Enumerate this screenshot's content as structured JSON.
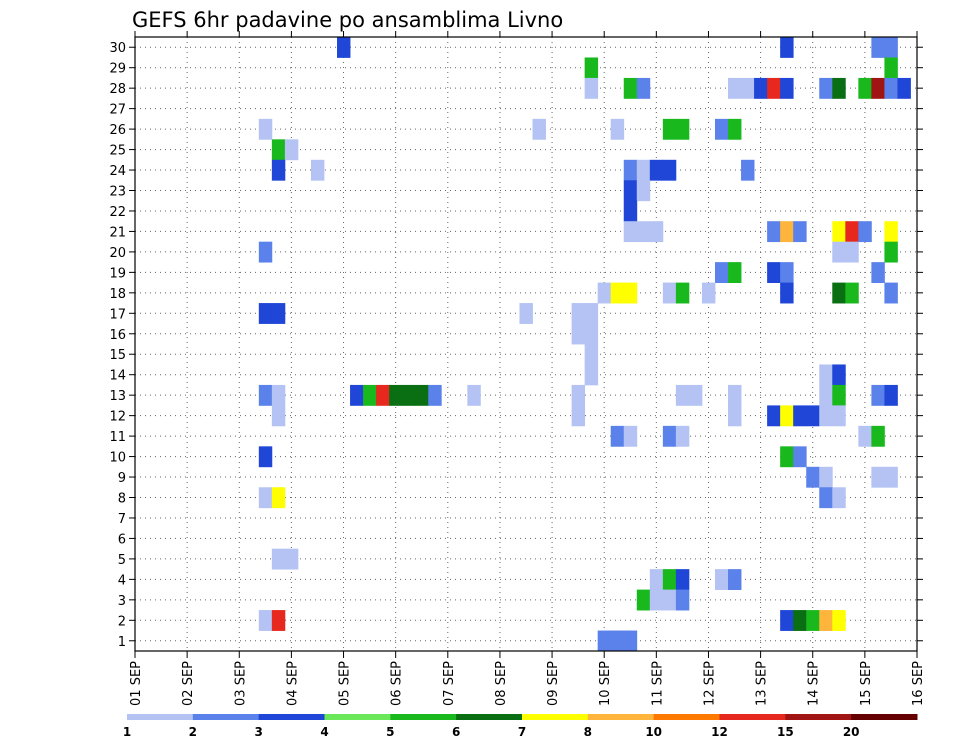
{
  "chart_data": {
    "type": "heatmap",
    "title": "GEFS 6hr padavine po ansamblima Livno",
    "xlabel": "",
    "ylabel": "",
    "x_tick_labels": [
      "01 SEP",
      "02 SEP",
      "03 SEP",
      "04 SEP",
      "05 SEP",
      "06 SEP",
      "07 SEP",
      "08 SEP",
      "09 SEP",
      "10 SEP",
      "11 SEP",
      "12 SEP",
      "13 SEP",
      "14 SEP",
      "15 SEP",
      "16 SEP"
    ],
    "y_tick_labels": [
      "1",
      "2",
      "3",
      "4",
      "5",
      "6",
      "7",
      "8",
      "9",
      "10",
      "11",
      "12",
      "13",
      "14",
      "15",
      "16",
      "17",
      "18",
      "19",
      "20",
      "21",
      "22",
      "23",
      "24",
      "25",
      "26",
      "27",
      "28",
      "29",
      "30"
    ],
    "xlim": [
      0,
      60
    ],
    "ylim": [
      0.5,
      30.5
    ],
    "grid": true,
    "x_unit": "6-hour steps from 01 SEP 00",
    "y_unit": "ensemble member",
    "colorbar": {
      "labels": [
        "1",
        "2",
        "3",
        "4",
        "5",
        "6",
        "7",
        "8",
        "10",
        "12",
        "15",
        "20"
      ],
      "colors": [
        "#b4c3f3",
        "#5a82ea",
        "#1f46d6",
        "#6ae85a",
        "#19b91e",
        "#0a6e12",
        "#ffff00",
        "#ffb43c",
        "#ff7800",
        "#e6281e",
        "#a01414",
        "#640000"
      ]
    },
    "cells": [
      [
        16,
        30,
        3
      ],
      [
        50,
        30,
        3
      ],
      [
        57,
        30,
        2
      ],
      [
        58,
        30,
        2
      ],
      [
        35,
        29,
        5
      ],
      [
        58,
        29,
        5
      ],
      [
        35,
        28,
        1
      ],
      [
        38,
        28,
        5
      ],
      [
        39,
        28,
        2
      ],
      [
        46,
        28,
        1
      ],
      [
        47,
        28,
        1
      ],
      [
        48,
        28,
        3
      ],
      [
        49,
        28,
        10
      ],
      [
        50,
        28,
        3
      ],
      [
        53,
        28,
        2
      ],
      [
        54,
        28,
        6
      ],
      [
        56,
        28,
        5
      ],
      [
        57,
        28,
        11
      ],
      [
        58,
        28,
        2
      ],
      [
        59,
        28,
        3
      ],
      [
        10,
        26,
        1
      ],
      [
        31,
        26,
        1
      ],
      [
        37,
        26,
        1
      ],
      [
        41,
        26,
        5
      ],
      [
        42,
        26,
        5
      ],
      [
        45,
        26,
        2
      ],
      [
        46,
        26,
        5
      ],
      [
        11,
        25,
        5
      ],
      [
        12,
        25,
        1
      ],
      [
        11,
        24,
        3
      ],
      [
        14,
        24,
        1
      ],
      [
        38,
        24,
        2
      ],
      [
        39,
        24,
        1
      ],
      [
        40,
        24,
        3
      ],
      [
        41,
        24,
        3
      ],
      [
        47,
        24,
        2
      ],
      [
        38,
        23,
        3
      ],
      [
        39,
        23,
        1
      ],
      [
        38,
        22,
        3
      ],
      [
        38,
        21,
        1
      ],
      [
        39,
        21,
        1
      ],
      [
        40,
        21,
        1
      ],
      [
        49,
        21,
        2
      ],
      [
        50,
        21,
        8
      ],
      [
        51,
        21,
        2
      ],
      [
        54,
        21,
        7
      ],
      [
        55,
        21,
        10
      ],
      [
        56,
        21,
        2
      ],
      [
        58,
        21,
        7
      ],
      [
        10,
        20,
        2
      ],
      [
        54,
        20,
        1
      ],
      [
        55,
        20,
        1
      ],
      [
        58,
        20,
        5
      ],
      [
        45,
        19,
        2
      ],
      [
        46,
        19,
        5
      ],
      [
        49,
        19,
        3
      ],
      [
        50,
        19,
        2
      ],
      [
        57,
        19,
        2
      ],
      [
        36,
        18,
        1
      ],
      [
        37,
        18,
        7
      ],
      [
        38,
        18,
        7
      ],
      [
        41,
        18,
        1
      ],
      [
        42,
        18,
        5
      ],
      [
        44,
        18,
        1
      ],
      [
        50,
        18,
        3
      ],
      [
        54,
        18,
        6
      ],
      [
        55,
        18,
        5
      ],
      [
        58,
        18,
        2
      ],
      [
        10,
        17,
        3
      ],
      [
        11,
        17,
        3
      ],
      [
        30,
        17,
        1
      ],
      [
        34,
        17,
        1
      ],
      [
        35,
        17,
        1
      ],
      [
        34,
        16,
        1
      ],
      [
        35,
        16,
        1
      ],
      [
        35,
        15,
        1
      ],
      [
        35,
        14,
        1
      ],
      [
        53,
        14,
        1
      ],
      [
        54,
        14,
        3
      ],
      [
        10,
        13,
        2
      ],
      [
        11,
        13,
        1
      ],
      [
        17,
        13,
        3
      ],
      [
        18,
        13,
        5
      ],
      [
        19,
        13,
        10
      ],
      [
        20,
        13,
        6
      ],
      [
        21,
        13,
        6
      ],
      [
        22,
        13,
        6
      ],
      [
        23,
        13,
        2
      ],
      [
        26,
        13,
        1
      ],
      [
        34,
        13,
        1
      ],
      [
        42,
        13,
        1
      ],
      [
        43,
        13,
        1
      ],
      [
        46,
        13,
        1
      ],
      [
        53,
        13,
        1
      ],
      [
        54,
        13,
        5
      ],
      [
        57,
        13,
        2
      ],
      [
        58,
        13,
        3
      ],
      [
        11,
        12,
        1
      ],
      [
        34,
        12,
        1
      ],
      [
        46,
        12,
        1
      ],
      [
        49,
        12,
        3
      ],
      [
        50,
        12,
        7
      ],
      [
        51,
        12,
        3
      ],
      [
        52,
        12,
        3
      ],
      [
        53,
        12,
        1
      ],
      [
        54,
        12,
        1
      ],
      [
        37,
        11,
        2
      ],
      [
        38,
        11,
        1
      ],
      [
        41,
        11,
        2
      ],
      [
        42,
        11,
        1
      ],
      [
        56,
        11,
        1
      ],
      [
        57,
        11,
        5
      ],
      [
        10,
        10,
        3
      ],
      [
        50,
        10,
        5
      ],
      [
        51,
        10,
        2
      ],
      [
        52,
        9,
        2
      ],
      [
        53,
        9,
        1
      ],
      [
        57,
        9,
        1
      ],
      [
        58,
        9,
        1
      ],
      [
        10,
        8,
        1
      ],
      [
        11,
        8,
        7
      ],
      [
        53,
        8,
        2
      ],
      [
        54,
        8,
        1
      ],
      [
        11,
        5,
        1
      ],
      [
        12,
        5,
        1
      ],
      [
        40,
        4,
        1
      ],
      [
        41,
        4,
        5
      ],
      [
        42,
        4,
        3
      ],
      [
        45,
        4,
        1
      ],
      [
        46,
        4,
        2
      ],
      [
        39,
        3,
        5
      ],
      [
        40,
        3,
        1
      ],
      [
        41,
        3,
        1
      ],
      [
        42,
        3,
        2
      ],
      [
        10,
        2,
        1
      ],
      [
        11,
        2,
        10
      ],
      [
        50,
        2,
        3
      ],
      [
        51,
        2,
        6
      ],
      [
        52,
        2,
        5
      ],
      [
        53,
        2,
        8
      ],
      [
        54,
        2,
        7
      ],
      [
        36,
        1,
        2
      ],
      [
        37,
        1,
        2
      ],
      [
        38,
        1,
        2
      ]
    ]
  }
}
